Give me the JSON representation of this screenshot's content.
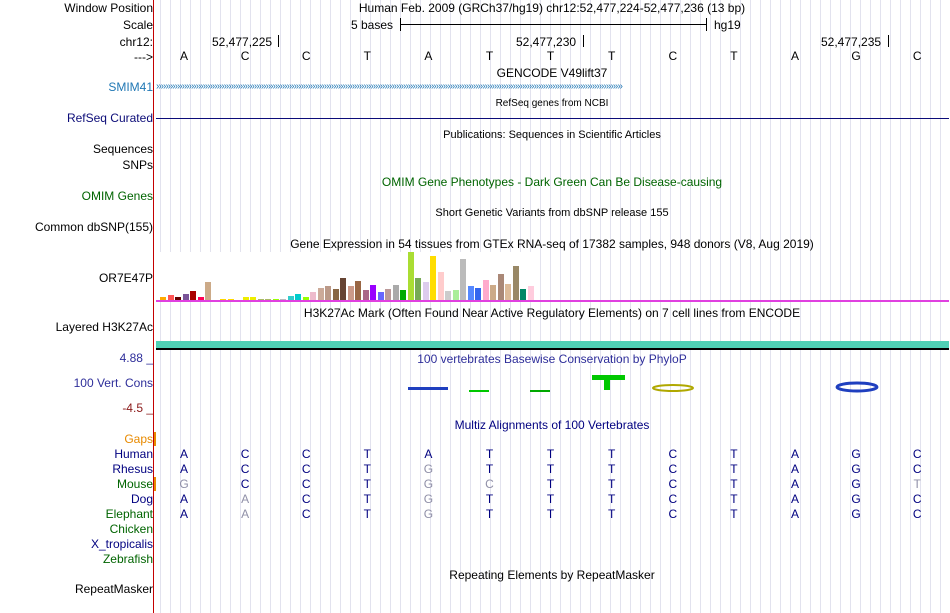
{
  "labels": {
    "window_position": "Window Position",
    "scale": "Scale",
    "chr": "chr12:",
    "arrow": "--->",
    "smim41": "SMIM41",
    "refseq": "RefSeq Curated",
    "sequences": "Sequences",
    "snps": "SNPs",
    "omim": "OMIM Genes",
    "dbsnp": "Common dbSNP(155)",
    "gtex_gene": "OR7E47P",
    "h3k27ac": "Layered H3K27Ac",
    "cons_max": "4.88 _",
    "cons_label": "100 Vert. Cons",
    "cons_min": "-4.5 _",
    "gaps": "Gaps",
    "repeatmasker": "RepeatMasker"
  },
  "header": {
    "position": "Human Feb. 2009 (GRCh37/hg19)   chr12:52,477,224-52,477,236 (13 bp)",
    "scale_label": "5 bases",
    "assembly": "hg19",
    "coord1": "52,477,225",
    "coord2": "52,477,230",
    "coord3": "52,477,235"
  },
  "reference_bases": [
    "A",
    "C",
    "C",
    "T",
    "A",
    "T",
    "T",
    "T",
    "C",
    "T",
    "A",
    "G",
    "C"
  ],
  "tracks": {
    "gencode_title": "GENCODE V49lift37",
    "refseq_title": "RefSeq genes from NCBI",
    "publications_title": "Publications: Sequences in Scientific Articles",
    "omim_title": "OMIM Gene Phenotypes - Dark Green Can Be Disease-causing",
    "dbsnp_title": "Short Genetic Variants from dbSNP release 155",
    "gtex_title": "Gene Expression in 54 tissues from GTEx RNA-seq of 17382 samples, 948 donors (V8, Aug 2019)",
    "h3k27ac_title": "H3K27Ac Mark (Often Found Near Active Regulatory Elements) on 7 cell lines from ENCODE",
    "phylop_title": "100 vertebrates Basewise Conservation by PhyloP",
    "multiz_title": "Multiz Alignments of 100 Vertebrates",
    "repeatmasker_title": "Repeating Elements by RepeatMasker"
  },
  "gtex_bars": [
    {
      "h": 3,
      "c": "#FFAA00"
    },
    {
      "h": 5,
      "c": "#FF5555"
    },
    {
      "h": 3,
      "c": "#660000"
    },
    {
      "h": 6,
      "c": "#7A5599"
    },
    {
      "h": 9,
      "c": "#AA0000"
    },
    {
      "h": 3,
      "c": "#FF0055"
    },
    {
      "h": 18,
      "c": "#CCAA88"
    },
    {
      "h": 0,
      "c": "#fff"
    },
    {
      "h": 1,
      "c": "#FFD700"
    },
    {
      "h": 1,
      "c": "#FFD700"
    },
    {
      "h": 0,
      "c": "#fff"
    },
    {
      "h": 3,
      "c": "#EEEE00"
    },
    {
      "h": 3,
      "c": "#EEEE00"
    },
    {
      "h": 1,
      "c": "#AABB66"
    },
    {
      "h": 1,
      "c": "#AABB66"
    },
    {
      "h": 1,
      "c": "#99FF00"
    },
    {
      "h": 1,
      "c": "#BBBBBB"
    },
    {
      "h": 4,
      "c": "#33CCCC"
    },
    {
      "h": 6,
      "c": "#00CCCC"
    },
    {
      "h": 3,
      "c": "#99FF00"
    },
    {
      "h": 8,
      "c": "#EEBBCC"
    },
    {
      "h": 12,
      "c": "#CCAA99"
    },
    {
      "h": 14,
      "c": "#BB9988"
    },
    {
      "h": 11,
      "c": "#886644"
    },
    {
      "h": 22,
      "c": "#664433"
    },
    {
      "h": 14,
      "c": "#CC9988"
    },
    {
      "h": 19,
      "c": "#996644"
    },
    {
      "h": 10,
      "c": "#AA6688"
    },
    {
      "h": 15,
      "c": "#9900FF"
    },
    {
      "h": 8,
      "c": "#6666FF"
    },
    {
      "h": 11,
      "c": "#BB9999"
    },
    {
      "h": 15,
      "c": "#AAAAAA"
    },
    {
      "h": 10,
      "c": "#00AA00"
    },
    {
      "h": 48,
      "c": "#AADD33"
    },
    {
      "h": 22,
      "c": "#77AA55"
    },
    {
      "h": 18,
      "c": "#DDCCEE"
    },
    {
      "h": 44,
      "c": "#FFDD00"
    },
    {
      "h": 28,
      "c": "#FFCCCC"
    },
    {
      "h": 9,
      "c": "#CCCCCC"
    },
    {
      "h": 10,
      "c": "#AAEE99"
    },
    {
      "h": 41,
      "c": "#BBBBBB"
    },
    {
      "h": 14,
      "c": "#5588FF"
    },
    {
      "h": 12,
      "c": "#3366EE"
    },
    {
      "h": 20,
      "c": "#FFAACC"
    },
    {
      "h": 15,
      "c": "#CCAA88"
    },
    {
      "h": 26,
      "c": "#AA8877"
    },
    {
      "h": 16,
      "c": "#DDBB99"
    },
    {
      "h": 34,
      "c": "#998866"
    },
    {
      "h": 11,
      "c": "#008866"
    },
    {
      "h": 14,
      "c": "#FFCCDD"
    }
  ],
  "alignment": {
    "rows": [
      {
        "species": "Human",
        "color": "#000080",
        "bases": [
          "A",
          "C",
          "C",
          "T",
          "A",
          "T",
          "T",
          "T",
          "C",
          "T",
          "A",
          "G",
          "C"
        ],
        "faint": []
      },
      {
        "species": "Rhesus",
        "color": "#000080",
        "bases": [
          "A",
          "C",
          "C",
          "T",
          "G",
          "T",
          "T",
          "T",
          "C",
          "T",
          "A",
          "G",
          "C"
        ],
        "faint": [
          4
        ]
      },
      {
        "species": "Mouse",
        "color": "#006400",
        "bases": [
          "G",
          "C",
          "C",
          "T",
          "G",
          "C",
          "T",
          "T",
          "C",
          "T",
          "A",
          "G",
          "T"
        ],
        "faint": [
          0,
          4,
          5,
          12
        ]
      },
      {
        "species": "Dog",
        "color": "#000080",
        "bases": [
          "A",
          "A",
          "C",
          "T",
          "G",
          "T",
          "T",
          "T",
          "C",
          "T",
          "A",
          "G",
          "C"
        ],
        "faint": [
          1,
          4
        ]
      },
      {
        "species": "Elephant",
        "color": "#006400",
        "bases": [
          "A",
          "A",
          "C",
          "T",
          "G",
          "T",
          "T",
          "T",
          "C",
          "T",
          "A",
          "G",
          "C"
        ],
        "faint": [
          1,
          4
        ]
      },
      {
        "species": "Chicken",
        "color": "#006400",
        "bases": [],
        "faint": []
      },
      {
        "species": "X_tropicalis",
        "color": "#000080",
        "bases": [],
        "faint": []
      },
      {
        "species": "Zebrafish",
        "color": "#006400",
        "bases": [],
        "faint": []
      }
    ]
  },
  "colors": {
    "gencode": "#1F77B4",
    "refseq": "#0C0C78",
    "omim": "#006400",
    "h3k27ac": "#4FD1B5",
    "phylop_title": "#2E2E9A",
    "gaps": "#E88A00",
    "cons_min": "#8B1A1A"
  }
}
